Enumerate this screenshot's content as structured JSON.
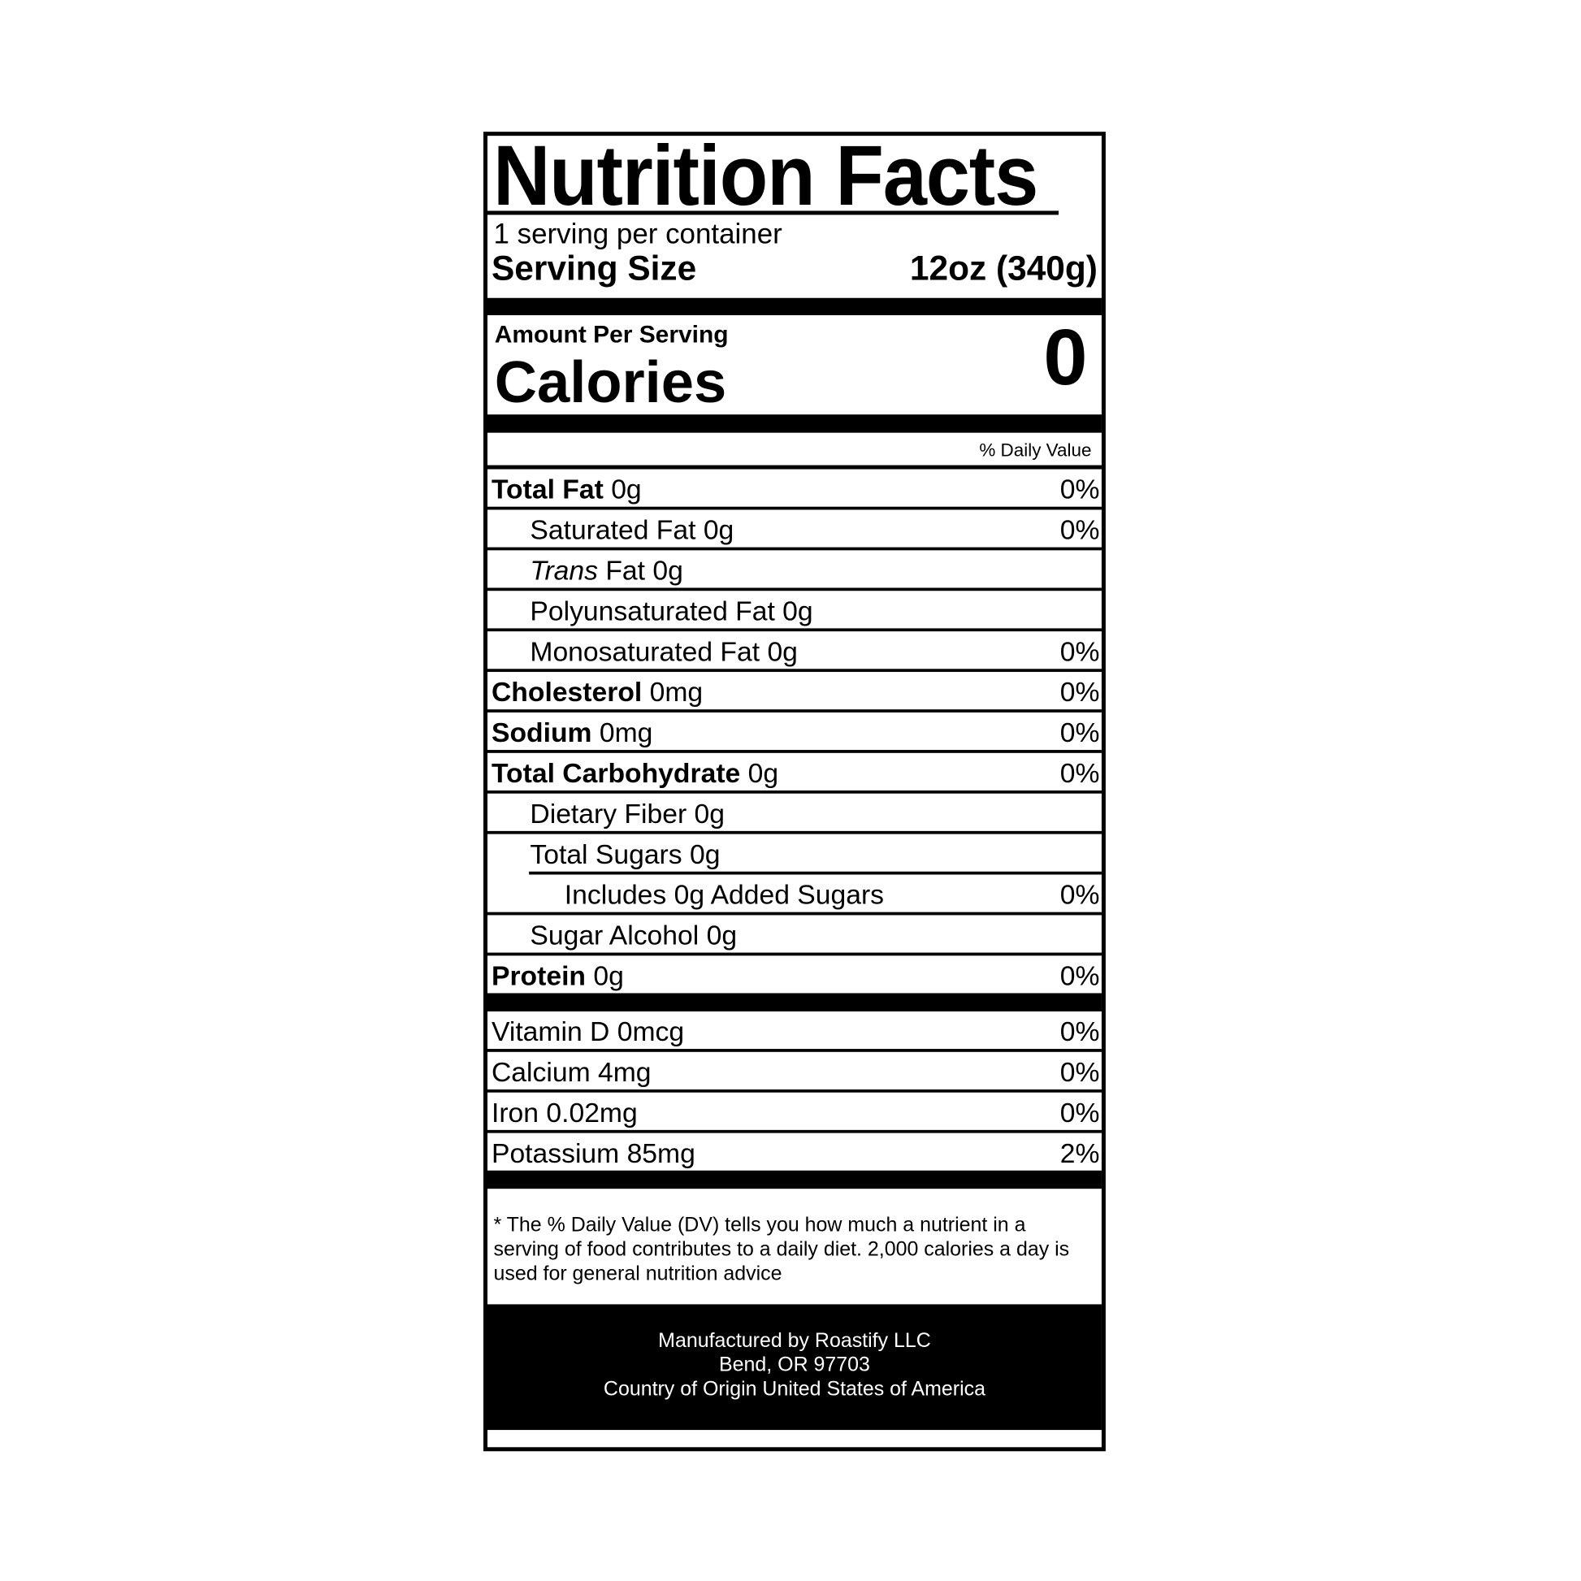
{
  "title": "Nutrition Facts",
  "servings_per_container": "1 serving per container",
  "serving_size_label": "Serving Size",
  "serving_size_value": "12oz (340g)",
  "amount_per_serving": "Amount Per Serving",
  "calories_label": "Calories",
  "calories_value": "0",
  "daily_value_header": "% Daily Value",
  "nutrients": [
    {
      "label": "Total Fat",
      "value": "0g",
      "dv": "0%"
    },
    {
      "label": "Saturated Fat 0g",
      "dv": "0%"
    },
    {
      "label_italic": "Trans",
      "label": " Fat 0g",
      "dv": ""
    },
    {
      "label": "Polyunsaturated Fat 0g",
      "dv": ""
    },
    {
      "label": "Monosaturated Fat 0g",
      "dv": "0%"
    },
    {
      "label": "Cholesterol",
      "value": "0mg",
      "dv": "0%"
    },
    {
      "label": "Sodium",
      "value": "0mg",
      "dv": "0%"
    },
    {
      "label": "Total Carbohydrate",
      "value": "0g",
      "dv": "0%"
    },
    {
      "label": "Dietary Fiber 0g",
      "dv": ""
    },
    {
      "label": "Total Sugars 0g",
      "dv": ""
    },
    {
      "label": "Includes 0g Added Sugars",
      "dv": "0%"
    },
    {
      "label": "Sugar Alcohol 0g",
      "dv": ""
    },
    {
      "label": "Protein",
      "value": "0g",
      "dv": "0%"
    }
  ],
  "vitamins": [
    {
      "label": "Vitamin D 0mcg",
      "dv": "0%"
    },
    {
      "label": "Calcium 4mg",
      "dv": "0%"
    },
    {
      "label": "Iron 0.02mg",
      "dv": "0%"
    },
    {
      "label": "Potassium 85mg",
      "dv": "2%"
    }
  ],
  "footnote": "* The % Daily Value (DV) tells you how much a nutrient in a serving of food contributes to a daily diet. 2,000 calories a day is used for general nutrition advice",
  "manufacturer": {
    "line1": "Manufactured by Roastify LLC",
    "line2": "Bend, OR 97703",
    "line3": "Country of Origin United States of America"
  }
}
